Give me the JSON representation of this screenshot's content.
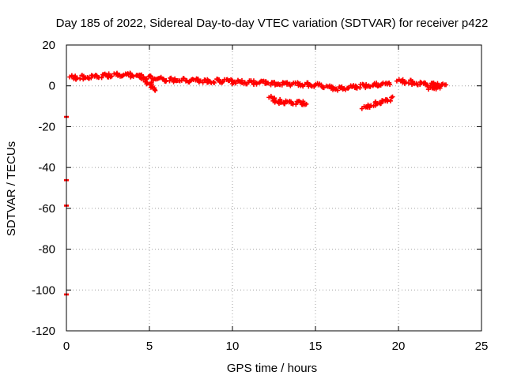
{
  "chart_data": {
    "type": "scatter",
    "title": "Day 185 of 2022, Sidereal Day-to-day VTEC variation (SDTVAR) for receiver p422",
    "xlabel": "GPS time / hours",
    "ylabel": "SDTVAR / TECUs",
    "xlim": [
      0,
      25
    ],
    "ylim": [
      -120,
      20
    ],
    "xticks": [
      0,
      5,
      10,
      15,
      20,
      25
    ],
    "yticks": [
      -120,
      -100,
      -80,
      -60,
      -40,
      -20,
      0,
      20
    ],
    "grid": true,
    "marker_color": "#ff0000",
    "series": [
      {
        "name": "main-trace",
        "segments": [
          [
            [
              0.2,
              4.5
            ],
            [
              0.5,
              4.0
            ],
            [
              1.0,
              4.2
            ],
            [
              1.5,
              4.5
            ],
            [
              2.0,
              4.8
            ],
            [
              2.5,
              5.2
            ],
            [
              3.0,
              5.5
            ],
            [
              3.5,
              5.6
            ],
            [
              4.0,
              5.2
            ],
            [
              4.5,
              4.5
            ],
            [
              5.0,
              4.0
            ],
            [
              5.5,
              3.5
            ],
            [
              6.0,
              3.0
            ],
            [
              6.5,
              2.8
            ],
            [
              7.0,
              2.7
            ],
            [
              7.5,
              2.6
            ],
            [
              8.0,
              2.6
            ],
            [
              8.5,
              2.5
            ],
            [
              9.0,
              2.4
            ],
            [
              9.5,
              2.2
            ],
            [
              10.0,
              2.0
            ],
            [
              10.5,
              1.9
            ],
            [
              11.0,
              1.8
            ],
            [
              11.5,
              1.6
            ],
            [
              12.0,
              1.5
            ],
            [
              12.5,
              1.4
            ],
            [
              13.0,
              1.2
            ],
            [
              13.5,
              1.0
            ],
            [
              14.0,
              0.8
            ],
            [
              14.5,
              0.6
            ],
            [
              15.0,
              0.3
            ],
            [
              15.5,
              -0.3
            ],
            [
              16.0,
              -1.0
            ],
            [
              16.5,
              -1.5
            ],
            [
              17.0,
              -1.0
            ],
            [
              17.5,
              -0.3
            ],
            [
              18.0,
              0.0
            ],
            [
              18.5,
              0.3
            ],
            [
              19.0,
              0.6
            ],
            [
              19.5,
              1.0
            ]
          ],
          [
            [
              19.9,
              2.5
            ],
            [
              20.3,
              2.2
            ],
            [
              20.8,
              1.7
            ],
            [
              21.3,
              1.2
            ],
            [
              21.8,
              0.8
            ],
            [
              22.3,
              0.5
            ],
            [
              22.8,
              0.4
            ]
          ]
        ]
      },
      {
        "name": "branch-near-5h",
        "segments": [
          [
            [
              4.5,
              4.0
            ],
            [
              4.8,
              2.5
            ],
            [
              5.1,
              0.5
            ],
            [
              5.4,
              -1.5
            ]
          ]
        ]
      },
      {
        "name": "branch-12h-14h",
        "segments": [
          [
            [
              12.2,
              -5.5
            ],
            [
              12.5,
              -6.8
            ],
            [
              12.8,
              -7.6
            ],
            [
              13.2,
              -8.0
            ],
            [
              13.7,
              -8.2
            ],
            [
              14.2,
              -8.3
            ],
            [
              14.5,
              -8.3
            ]
          ]
        ]
      },
      {
        "name": "branch-18h-19h",
        "segments": [
          [
            [
              17.8,
              -11.0
            ],
            [
              18.2,
              -10.0
            ],
            [
              18.6,
              -8.8
            ],
            [
              19.0,
              -7.8
            ],
            [
              19.4,
              -6.8
            ],
            [
              19.6,
              -6.0
            ]
          ]
        ]
      },
      {
        "name": "branch-near-22h",
        "segments": [
          [
            [
              21.8,
              -1.5
            ],
            [
              22.2,
              -0.8
            ],
            [
              22.6,
              -0.3
            ]
          ]
        ]
      }
    ],
    "isolated_points": [
      {
        "x": 0.0,
        "y": -15
      },
      {
        "x": 0.0,
        "y": -46
      },
      {
        "x": 0.0,
        "y": -58.5
      },
      {
        "x": 0.0,
        "y": -102
      }
    ]
  }
}
